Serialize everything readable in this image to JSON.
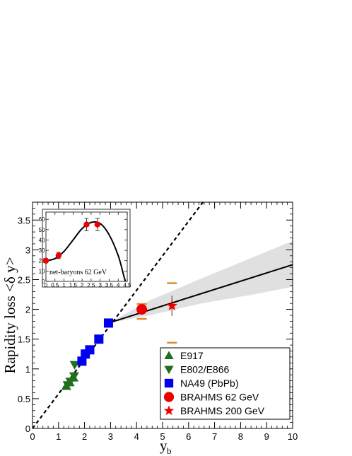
{
  "chart_data": {
    "type": "scatter",
    "xlabel": "y",
    "xlabel_sub": "b",
    "ylabel": "Rapidity loss <δ y>",
    "xlim": [
      0,
      10
    ],
    "ylim": [
      0,
      3.8
    ],
    "x_ticks": [
      "0",
      "1",
      "2",
      "3",
      "4",
      "5",
      "6",
      "7",
      "8",
      "9",
      "10"
    ],
    "y_ticks": [
      "0",
      "0.5",
      "1",
      "1.5",
      "2",
      "2.5",
      "3",
      "3.5"
    ],
    "grid": false,
    "legend_position": "bottom-right",
    "series": [
      {
        "name": "E917",
        "marker": "triangle-up",
        "color": "#1e6f1e",
        "points": [
          {
            "x": 1.3,
            "y": 0.71
          },
          {
            "x": 1.43,
            "y": 0.77
          },
          {
            "x": 1.58,
            "y": 0.85
          }
        ]
      },
      {
        "name": "E802/E866",
        "marker": "triangle-down",
        "color": "#1e6f1e",
        "points": [
          {
            "x": 1.35,
            "y": 0.73
          },
          {
            "x": 1.45,
            "y": 0.79
          },
          {
            "x": 1.6,
            "y": 0.88
          },
          {
            "x": 1.62,
            "y": 1.07
          }
        ]
      },
      {
        "name": "NA49 (PbPb)",
        "marker": "square",
        "color": "#0000ee",
        "points": [
          {
            "x": 1.9,
            "y": 1.13
          },
          {
            "x": 2.03,
            "y": 1.25
          },
          {
            "x": 2.2,
            "y": 1.32
          },
          {
            "x": 2.55,
            "y": 1.5
          },
          {
            "x": 2.92,
            "y": 1.77
          }
        ]
      },
      {
        "name": "BRAHMS 62 GeV",
        "marker": "circle",
        "color": "#ee0000",
        "points": [
          {
            "x": 4.2,
            "y": 2.0,
            "err_lo": 0.09,
            "err_hi": 0.09,
            "sys_lo": 0.16,
            "sys_hi": 0.09
          }
        ]
      },
      {
        "name": "BRAHMS 200 GeV",
        "marker": "star",
        "color": "#ee0000",
        "points": [
          {
            "x": 5.36,
            "y": 2.06,
            "err_lo": 0.17,
            "err_hi": 0.17,
            "sys_lo": 0.62,
            "sys_hi": 0.38
          }
        ]
      }
    ],
    "dashed_line": {
      "slope": 0.58,
      "intercept": 0.0,
      "style": "dashed",
      "color": "#000000"
    },
    "fit_line": {
      "x_start": 2.92,
      "y_start": 1.77,
      "x_end": 10,
      "y_end": 2.75,
      "color": "#000000"
    },
    "uncertainty_band": {
      "color": "#e0e0e0",
      "upper": [
        {
          "x": 2.92,
          "y": 1.77
        },
        {
          "x": 4.5,
          "y": 2.15
        },
        {
          "x": 6.5,
          "y": 2.52
        },
        {
          "x": 8.5,
          "y": 2.88
        },
        {
          "x": 10,
          "y": 3.15
        }
      ],
      "lower": [
        {
          "x": 2.92,
          "y": 1.77
        },
        {
          "x": 4.5,
          "y": 1.9
        },
        {
          "x": 6.5,
          "y": 2.1
        },
        {
          "x": 8.5,
          "y": 2.25
        },
        {
          "x": 10,
          "y": 2.38
        }
      ]
    },
    "inset": {
      "label": "net-baryons 62 GeV",
      "xlim": [
        0,
        4.5
      ],
      "ylim": [
        0,
        67
      ],
      "x_ticks": [
        "0",
        "0.5",
        "1",
        "1.5",
        "2",
        "2.5",
        "3",
        "3.5",
        "4",
        "4.5"
      ],
      "y_ticks": [
        "0",
        "10",
        "20",
        "30",
        "40",
        "50",
        "60"
      ],
      "points": [
        {
          "x": 0.0,
          "y": 20,
          "err": 2
        },
        {
          "x": 0.7,
          "y": 25,
          "err": 3
        },
        {
          "x": 2.25,
          "y": 55,
          "err": 6
        },
        {
          "x": 2.85,
          "y": 55,
          "err": 6
        }
      ],
      "curve": [
        {
          "x": 0,
          "y": 20
        },
        {
          "x": 0.5,
          "y": 22
        },
        {
          "x": 1.0,
          "y": 29
        },
        {
          "x": 1.5,
          "y": 40
        },
        {
          "x": 2.0,
          "y": 51
        },
        {
          "x": 2.5,
          "y": 57
        },
        {
          "x": 3.0,
          "y": 56
        },
        {
          "x": 3.5,
          "y": 45
        },
        {
          "x": 4.0,
          "y": 25
        },
        {
          "x": 4.3,
          "y": 6
        },
        {
          "x": 4.4,
          "y": 0
        }
      ]
    }
  }
}
